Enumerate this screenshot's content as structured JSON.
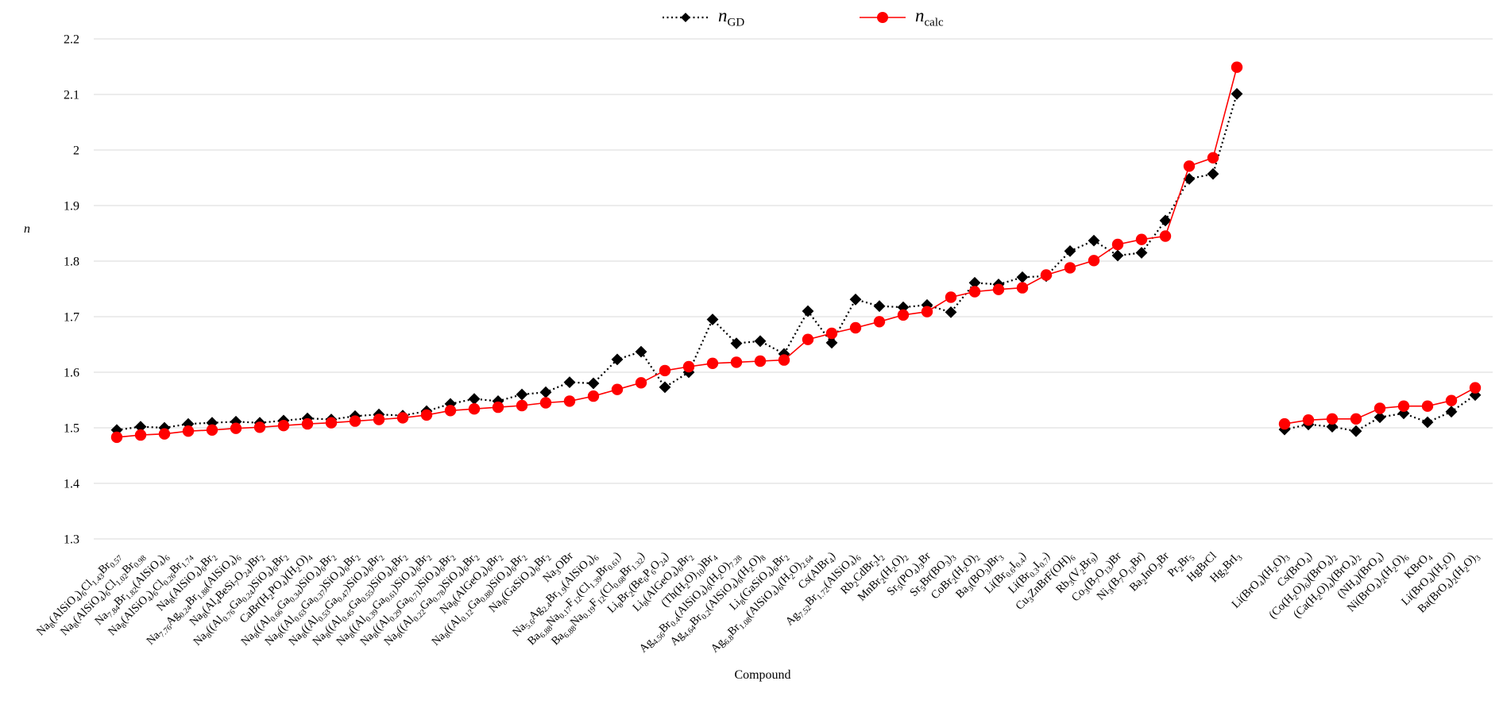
{
  "legend": {
    "gd": {
      "main": "n",
      "sub": "GD"
    },
    "calc": {
      "main": "n",
      "sub": "calc"
    }
  },
  "axes": {
    "y_label": "n",
    "x_label": "Compound",
    "y_ticks": [
      "2.2",
      "2.1",
      "2",
      "1.9",
      "1.8",
      "1.7",
      "1.6",
      "1.5",
      "1.4",
      "1.3"
    ]
  },
  "colors": {
    "gd_series": "#000000",
    "calc_series": "#FF0000",
    "gridline": "#D9D9D9",
    "text": "#000000"
  },
  "chart_data": {
    "type": "line",
    "title": "",
    "xlabel": "Compound",
    "ylabel": "n",
    "ylim": [
      1.3,
      2.2
    ],
    "grid": "horizontal",
    "legend_position": "top-center",
    "gap_after_index": 48,
    "categories": [
      "Na₈(AlSiO₄)₆Cl₁.₄₃Br₀.₅₇",
      "Na₈(AlSiO₄)₆Cl₁.₀₂Br₀.₉₈",
      "Na₇.₈₄Br₁.₈₂(AlSiO₄)₆",
      "Na₈(AlSiO₄)₆Cl₀.₂₆Br₁.₇₄",
      "Na₈(AlSiO₄)₆Br₂",
      "Na₇.₇₆Ag₀.₂₄Br₁.₈₈(AlSiO₄)₆",
      "Na₈(Al₄BeSi₇O₂₄)Br₂",
      "Na₈((Al₀.₇₆Ga₀.₂₄)SiO₄)₆Br₂",
      "CaBr(H₂PO₄)(H₂O)₄",
      "Na₈((Al₀.₆₆Ga₀.₃₄)SiO₄)₆Br₂",
      "Na₈((Al₀.₆₃Ga₀.₃₇)SiO₄)₆Br₂",
      "Na₈((Al₀.₅₃Ga₀.₄₇)SiO₄)₆Br₂",
      "Na₈((Al₀.₄₅Ga₀.₅₅)SiO₄)₆Br₂",
      "Na₈((Al₀.₃₉Ga₀.₆₁)SiO₄)₆Br₂",
      "Na₈((Al₀.₂₉Ga₀.₇₁)SiO₄)₆Br₂",
      "Na₈((Al₀.₂₂Ga₀.₇₈)SiO₄)₆Br₂",
      "Na₈(AlGeO₄)₆Br₂",
      "Na₈((Al₀.₁₂Ga₀.₈₈)SiO₄)₆Br₂",
      "Na₈(GaSiO₄)₆Br₂",
      "Na₃OBr",
      "Na₅.₆Ag₂.₄Br₁.₉(AlSiO₄)₆",
      "Ba₆.₈₈Na₀.₁₇F₁₂(Cl₁.₃₉Br₀.₆₁)",
      "Ba₆.₈₈Na₀.₁₉F₁₂(Cl₀.₆₈Br₁.₃₂)",
      "Li₈Br₂(Be₆P₆O₂₄)",
      "Li₈(AlGeO₄)₆Br₂",
      "(Th(H₂O)₁₀)Br₄",
      "Ag₄.₅₆Br₀.₄(AlSiO₄)₆(H₂O)₇.₂₈",
      "Ag₄.₆₄Br₀.₂(AlSiO₄)₆(H₂O)₈",
      "Li₈(GaSiO₄)₆Br₂",
      "Ag₆.₈Br₁.₀₈(AlSiO₄)₆(H₂O)₂.₆₄",
      "Cs(AlBr₄)",
      "Ag₇.₅₂Br₁.₇₂(AlSiO₄)₆",
      "Rb₂CdBr₂I₂",
      "MnBr₂(H₂O)₂",
      "Sr₅(PO₄)₃Br",
      "Sr₅Br(BO₃)₃",
      "CoBr₂(H₂O)₂",
      "Ba₃(BO₃)Br₃",
      "Li(Br₀.₆I₀.₄)",
      "Li(Br₀.₃I₀.₇)",
      "Cu₃ZnBrF(OH)₆",
      "Rb₃(V₂Br₉)",
      "Co₃(B₇O₁₃)Br",
      "Ni₃(B₇O₁₃Br)",
      "Ba₂InO₃Br",
      "Pr₂Br₅",
      "HgBrCl",
      "Hg₂BrI₃",
      "Li(BrO₄)(H₂O)₃",
      "Cs(BrO₄)",
      "(Co(H₂O)₆)(BrO₄)₂",
      "(Ca(H₂O)₄)(BrO₄)₂",
      "(NH₄)(BrO₄)",
      "Ni(BrO₄)₂(H₂O)₆",
      "KBrO₄",
      "Li(BrO₄)(H₂O)",
      "Ba(BrO₄)₂(H₂O)₃"
    ],
    "series": [
      {
        "name": "n_GD",
        "color": "#000000",
        "marker": "diamond",
        "line_style": "dotted",
        "values": [
          1.496,
          1.502,
          1.5,
          1.507,
          1.509,
          1.511,
          1.509,
          1.513,
          1.517,
          1.515,
          1.521,
          1.524,
          1.522,
          1.53,
          1.543,
          1.552,
          1.548,
          1.56,
          1.564,
          1.582,
          1.58,
          1.623,
          1.637,
          1.573,
          1.6,
          1.695,
          1.652,
          1.656,
          1.633,
          1.71,
          1.653,
          1.731,
          1.719,
          1.717,
          1.721,
          1.708,
          1.761,
          1.758,
          1.771,
          1.773,
          1.818,
          1.837,
          1.81,
          1.815,
          1.873,
          1.948,
          1.957,
          2.101,
          1.497,
          1.506,
          1.502,
          1.494,
          1.519,
          1.526,
          1.51,
          1.529,
          1.559
        ]
      },
      {
        "name": "n_calc",
        "color": "#FF0000",
        "marker": "circle",
        "line_style": "solid",
        "values": [
          1.483,
          1.487,
          1.489,
          1.494,
          1.496,
          1.499,
          1.501,
          1.504,
          1.507,
          1.509,
          1.512,
          1.515,
          1.518,
          1.523,
          1.531,
          1.534,
          1.537,
          1.54,
          1.545,
          1.548,
          1.557,
          1.569,
          1.581,
          1.603,
          1.61,
          1.616,
          1.618,
          1.62,
          1.622,
          1.659,
          1.67,
          1.68,
          1.691,
          1.703,
          1.709,
          1.735,
          1.745,
          1.749,
          1.752,
          1.775,
          1.788,
          1.801,
          1.83,
          1.839,
          1.845,
          1.971,
          1.986,
          2.149,
          1.507,
          1.514,
          1.516,
          1.516,
          1.535,
          1.539,
          1.539,
          1.549,
          1.572
        ]
      }
    ]
  }
}
